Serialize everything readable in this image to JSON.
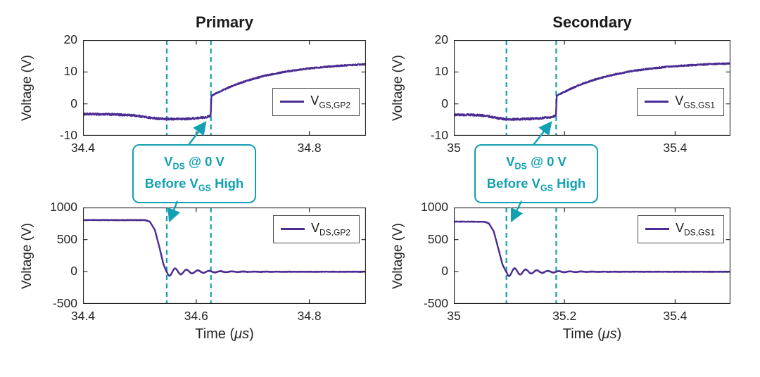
{
  "figure": {
    "ylabel": "Voltage (V)",
    "xlabel": {
      "pre": "Time (",
      "it": "μs",
      "post": ")"
    },
    "colors": {
      "trace": "#4b2c92",
      "marker": "#12a0b3",
      "axis": "#262626",
      "background": "#ffffff"
    }
  },
  "annotation": {
    "l1a": "V",
    "l1sub": "DS",
    "l1b": " @ 0 V",
    "l2a": "Before V",
    "l2sub": "GS",
    "l2b": " High"
  },
  "chart_data": {
    "type": "line",
    "plots": [
      {
        "name": "primary-gate-voltage",
        "title": "Primary",
        "xlim": [
          34.4,
          34.9
        ],
        "ylim": [
          -10,
          20
        ],
        "xticks": [
          {
            "v": 34.4,
            "label": "34.4"
          },
          {
            "v": 34.6,
            "label": ""
          },
          {
            "v": 34.8,
            "label": "34.8"
          }
        ],
        "yticks": [
          {
            "v": -10,
            "label": "-10"
          },
          {
            "v": 0,
            "label": "0"
          },
          {
            "v": 10,
            "label": "10"
          },
          {
            "v": 20,
            "label": "20"
          }
        ],
        "cursor_lines_x": [
          34.548,
          34.626
        ],
        "legend": {
          "main": "V",
          "sub": "GS,GP2"
        },
        "series": {
          "segments": [
            {
              "type": "poly",
              "noise": 0.28,
              "points": [
                [
                  34.4,
                  -3.2
                ],
                [
                  34.45,
                  -3.3
                ],
                [
                  34.49,
                  -3.6
                ],
                [
                  34.52,
                  -4.4
                ],
                [
                  34.548,
                  -4.8
                ],
                [
                  34.585,
                  -4.7
                ],
                [
                  34.61,
                  -4.35
                ],
                [
                  34.622,
                  -4.0
                ],
                [
                  34.6255,
                  -3.6
                ]
              ]
            },
            {
              "type": "poly",
              "noise": 0.15,
              "points": [
                [
                  34.6255,
                  -3.6
                ],
                [
                  34.627,
                  2.6
                ],
                [
                  34.645,
                  4.1
                ]
              ]
            },
            {
              "type": "exp",
              "noise": 0.18,
              "t0": 34.645,
              "t1": 34.9,
              "v0": 4.1,
              "v1": 13.2,
              "tau": 0.105
            }
          ]
        }
      },
      {
        "name": "secondary-gate-voltage",
        "title": "Secondary",
        "xlim": [
          35.0,
          35.5
        ],
        "ylim": [
          -10,
          20
        ],
        "xticks": [
          {
            "v": 35.0,
            "label": "35"
          },
          {
            "v": 35.2,
            "label": ""
          },
          {
            "v": 35.4,
            "label": "35.4"
          }
        ],
        "yticks": [
          {
            "v": -10,
            "label": "-10"
          },
          {
            "v": 0,
            "label": "0"
          },
          {
            "v": 10,
            "label": "10"
          },
          {
            "v": 20,
            "label": "20"
          }
        ],
        "cursor_lines_x": [
          35.095,
          35.185
        ],
        "legend": {
          "main": "V",
          "sub": "GS,GS1"
        },
        "series": {
          "segments": [
            {
              "type": "poly",
              "noise": 0.28,
              "points": [
                [
                  35.0,
                  -3.4
                ],
                [
                  35.04,
                  -3.5
                ],
                [
                  35.06,
                  -3.8
                ],
                [
                  35.08,
                  -4.5
                ],
                [
                  35.095,
                  -4.9
                ],
                [
                  35.14,
                  -4.7
                ],
                [
                  35.17,
                  -4.3
                ],
                [
                  35.181,
                  -3.9
                ],
                [
                  35.1845,
                  -3.5
                ]
              ]
            },
            {
              "type": "poly",
              "noise": 0.15,
              "points": [
                [
                  35.1845,
                  -3.5
                ],
                [
                  35.186,
                  2.6
                ],
                [
                  35.204,
                  4.1
                ]
              ]
            },
            {
              "type": "exp",
              "noise": 0.18,
              "t0": 35.204,
              "t1": 35.5,
              "v0": 4.1,
              "v1": 13.2,
              "tau": 0.105
            }
          ]
        }
      },
      {
        "name": "primary-drain-voltage",
        "title": "",
        "xlim": [
          34.4,
          34.9
        ],
        "ylim": [
          -500,
          1000
        ],
        "xticks": [
          {
            "v": 34.4,
            "label": "34.4"
          },
          {
            "v": 34.6,
            "label": "34.6"
          },
          {
            "v": 34.8,
            "label": "34.8"
          }
        ],
        "yticks": [
          {
            "v": -500,
            "label": "-500"
          },
          {
            "v": 0,
            "label": "0"
          },
          {
            "v": 500,
            "label": "500"
          },
          {
            "v": 1000,
            "label": "1000"
          }
        ],
        "cursor_lines_x": [
          34.548,
          34.626
        ],
        "legend": {
          "main": "V",
          "sub": "DS,GP2"
        },
        "series": {
          "segments": [
            {
              "type": "poly",
              "noise": 4,
              "points": [
                [
                  34.4,
                  805
                ],
                [
                  34.51,
                  803
                ],
                [
                  34.518,
                  780
                ]
              ]
            },
            {
              "type": "poly",
              "noise": 0,
              "points": [
                [
                  34.518,
                  780
                ],
                [
                  34.527,
                  650
                ],
                [
                  34.535,
                  380
                ],
                [
                  34.542,
                  120
                ],
                [
                  34.548,
                  -10
                ]
              ]
            },
            {
              "type": "ring",
              "noise": 3,
              "t0": 34.548,
              "t1": 34.9,
              "amp": 70,
              "period": 0.02,
              "decay": 0.045
            }
          ]
        }
      },
      {
        "name": "secondary-drain-voltage",
        "title": "",
        "xlim": [
          35.0,
          35.5
        ],
        "ylim": [
          -500,
          1000
        ],
        "xticks": [
          {
            "v": 35.0,
            "label": "35"
          },
          {
            "v": 35.2,
            "label": "35.2"
          },
          {
            "v": 35.4,
            "label": "35.4"
          }
        ],
        "yticks": [
          {
            "v": -500,
            "label": "-500"
          },
          {
            "v": 0,
            "label": "0"
          },
          {
            "v": 500,
            "label": "500"
          },
          {
            "v": 1000,
            "label": "1000"
          }
        ],
        "cursor_lines_x": [
          35.095,
          35.185
        ],
        "legend": {
          "main": "V",
          "sub": "DS,GS1"
        },
        "series": {
          "segments": [
            {
              "type": "poly",
              "noise": 4,
              "points": [
                [
                  35.0,
                  780
                ],
                [
                  35.055,
                  778
                ],
                [
                  35.063,
                  755
                ]
              ]
            },
            {
              "type": "poly",
              "noise": 0,
              "points": [
                [
                  35.063,
                  755
                ],
                [
                  35.072,
                  630
                ],
                [
                  35.08,
                  370
                ],
                [
                  35.088,
                  110
                ],
                [
                  35.095,
                  -10
                ]
              ]
            },
            {
              "type": "ring",
              "noise": 3,
              "t0": 35.095,
              "t1": 35.5,
              "amp": 75,
              "period": 0.02,
              "decay": 0.045
            }
          ]
        }
      }
    ]
  }
}
